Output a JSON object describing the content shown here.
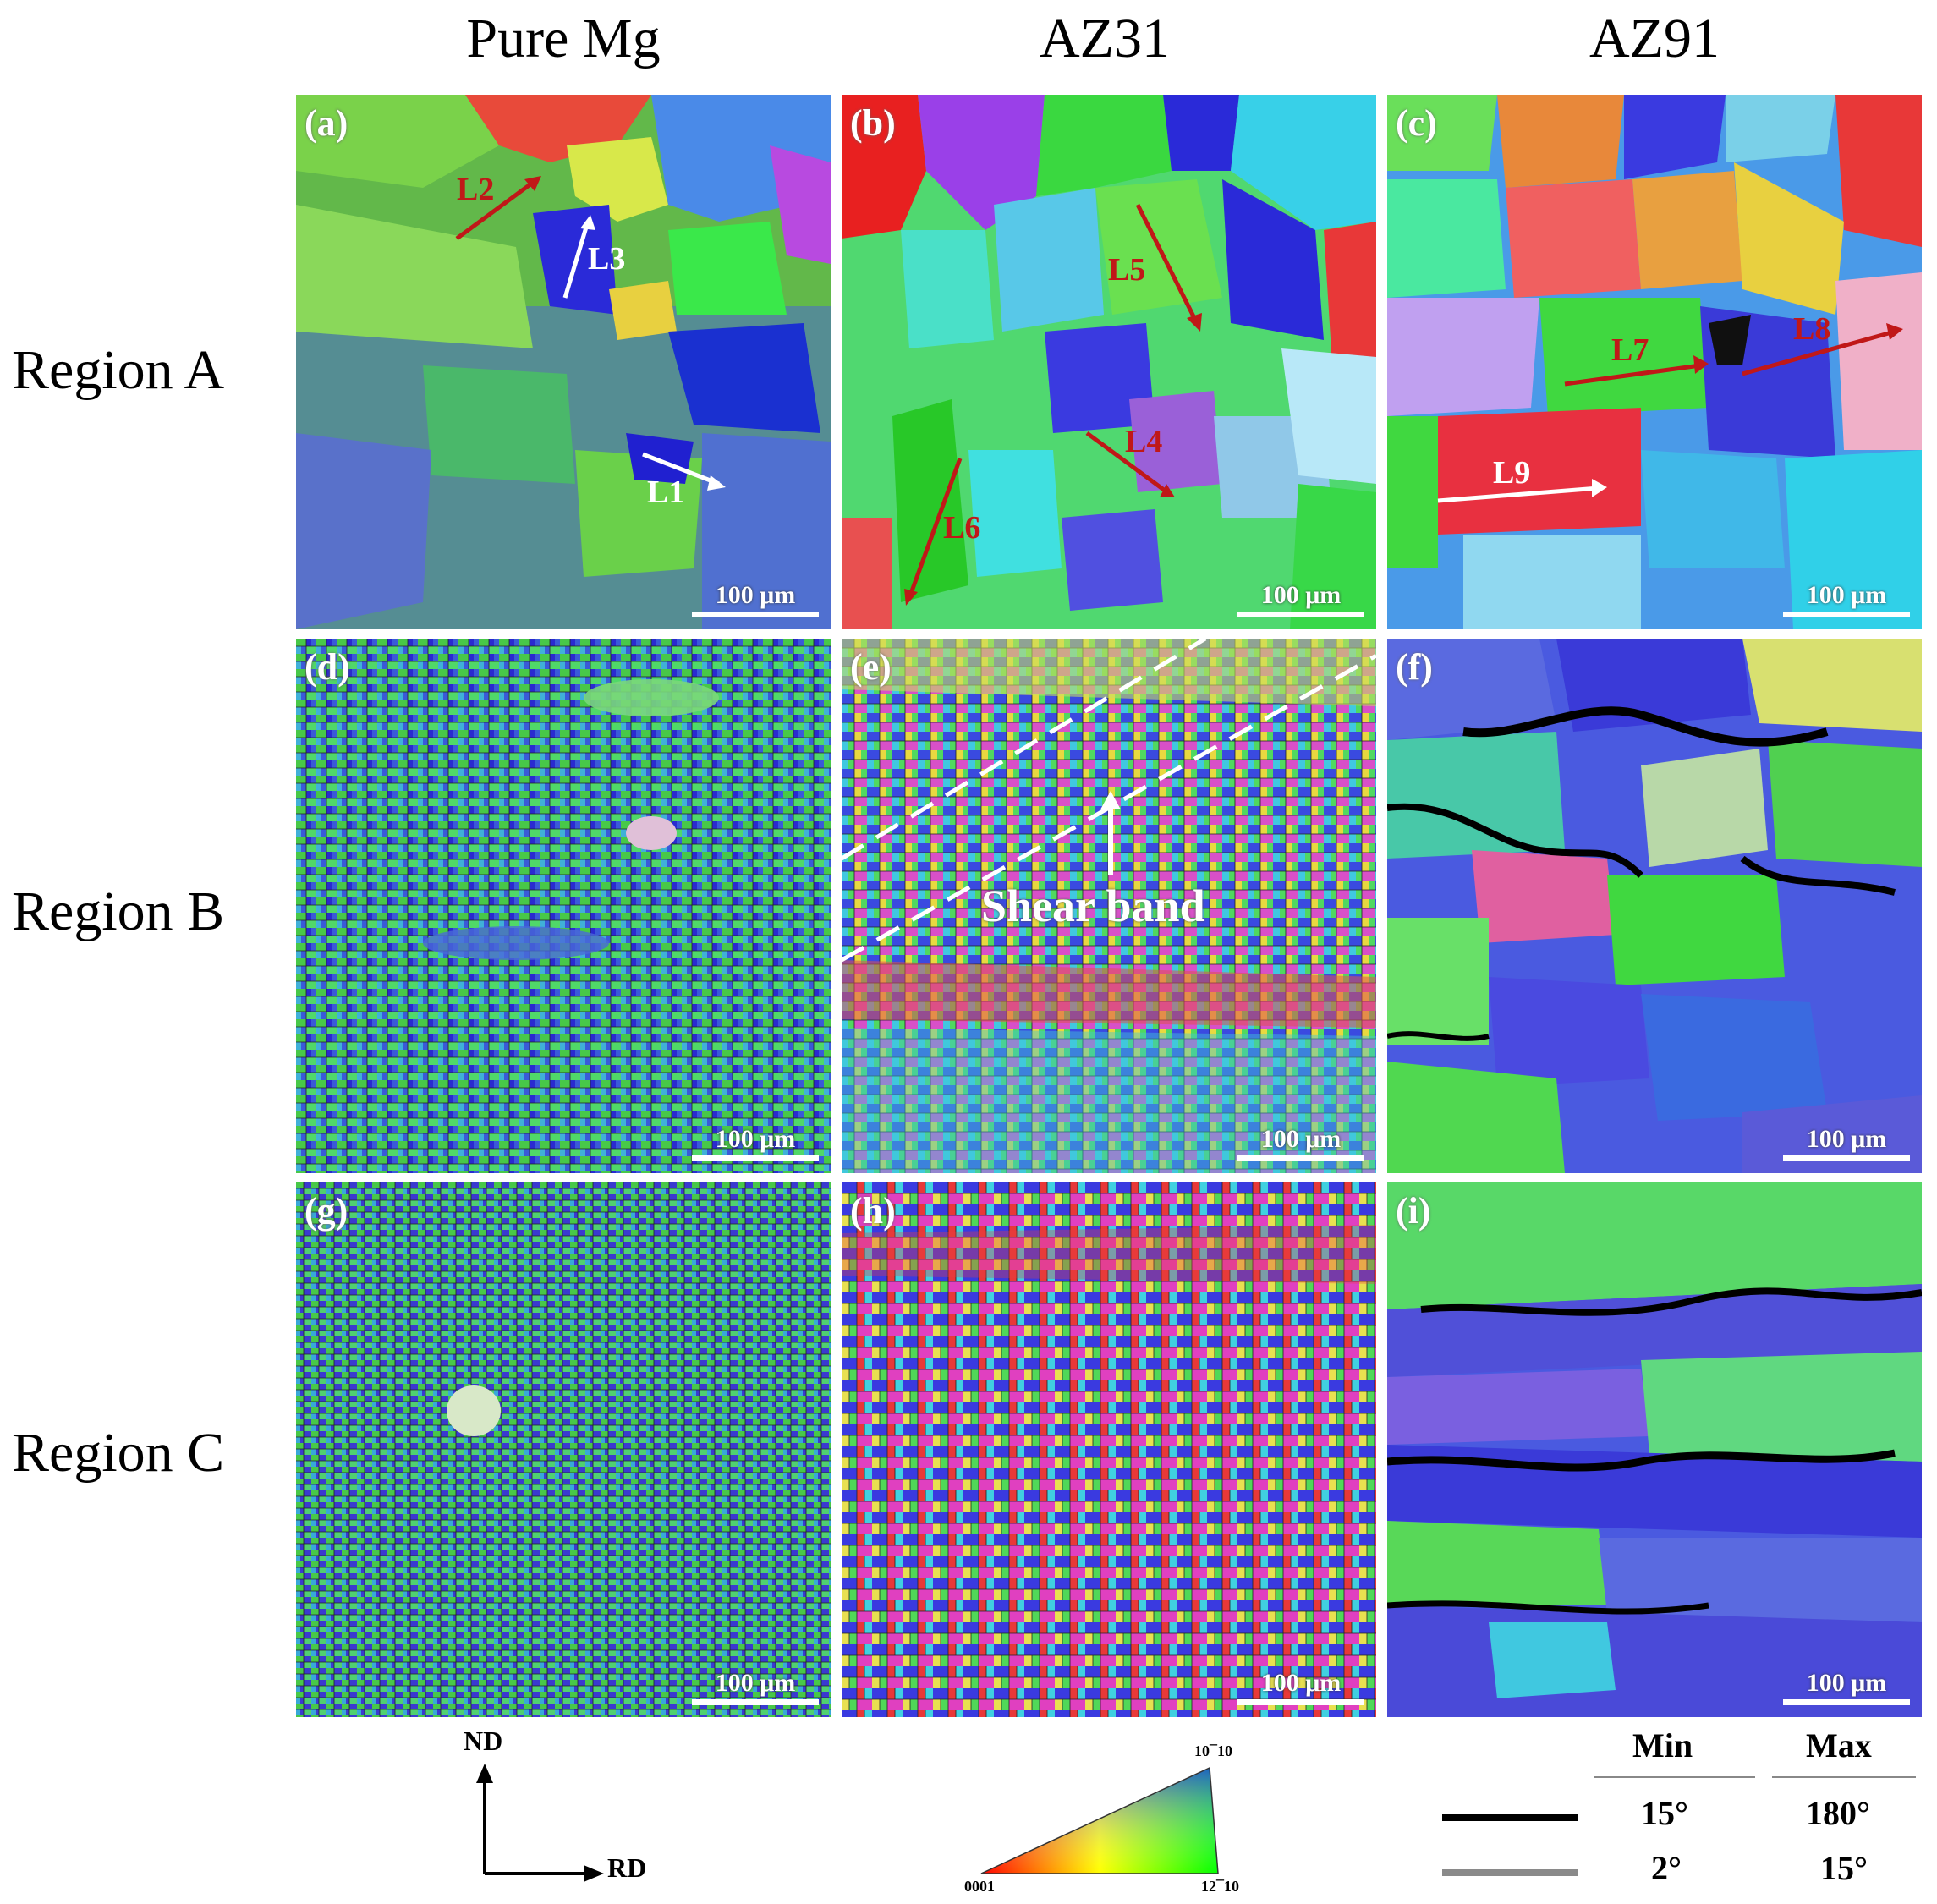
{
  "columns": [
    "Pure Mg",
    "AZ31",
    "AZ91"
  ],
  "rows": [
    "Region A",
    "Region B",
    "Region C"
  ],
  "panels": [
    {
      "label": "(a)",
      "scale": "100 μm",
      "marks": [
        "L2",
        "L3",
        "L1"
      ]
    },
    {
      "label": "(b)",
      "scale": "100 μm",
      "marks": [
        "L5",
        "L4",
        "L6"
      ]
    },
    {
      "label": "(c)",
      "scale": "100 μm",
      "marks": [
        "L7",
        "L8",
        "L9"
      ]
    },
    {
      "label": "(d)",
      "scale": "100 μm",
      "marks": []
    },
    {
      "label": "(e)",
      "scale": "100 μm",
      "marks": [
        "Shear band"
      ]
    },
    {
      "label": "(f)",
      "scale": "100 μm",
      "marks": []
    },
    {
      "label": "(g)",
      "scale": "100 μm",
      "marks": []
    },
    {
      "label": "(h)",
      "scale": "100 μm",
      "marks": []
    },
    {
      "label": "(i)",
      "scale": "100 μm",
      "marks": []
    }
  ],
  "axes": {
    "vertical": "ND",
    "horizontal": "RD"
  },
  "ipf": {
    "corner_left": "0001",
    "corner_right": "12¯10",
    "corner_top": "10¯10"
  },
  "boundary_legend": {
    "headers": [
      "Min",
      "Max"
    ],
    "rows": [
      {
        "min": "15°",
        "max": "180°",
        "color": "#000000"
      },
      {
        "min": "2°",
        "max": "15°",
        "color": "#8a8a8a"
      }
    ]
  }
}
